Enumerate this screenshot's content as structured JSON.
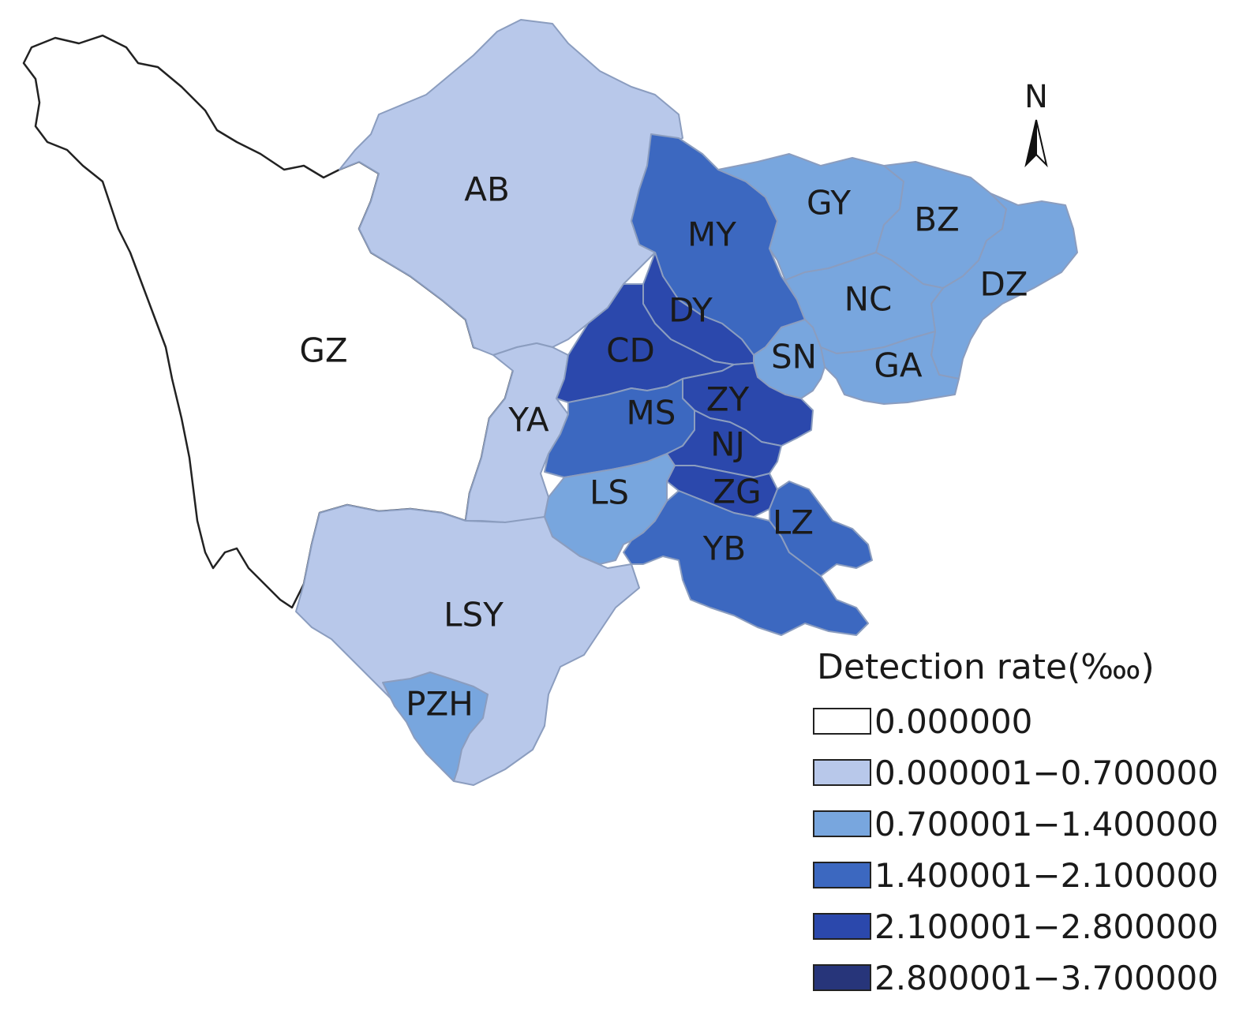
{
  "legend": {
    "title": "Detection rate(‱)",
    "classes": [
      {
        "label": "0.000000",
        "color": "#ffffff"
      },
      {
        "label": "0.000001−0.700000",
        "color": "#b8c8ea"
      },
      {
        "label": "0.700001−1.400000",
        "color": "#78a6de"
      },
      {
        "label": "1.400001−2.100000",
        "color": "#3c68c0"
      },
      {
        "label": "2.100001−2.800000",
        "color": "#2b48ac"
      },
      {
        "label": "2.800001−3.700000",
        "color": "#27357a"
      }
    ]
  },
  "north_arrow": {
    "label": "N"
  },
  "regions": [
    {
      "code": "GZ",
      "class": 0
    },
    {
      "code": "AB",
      "class": 1
    },
    {
      "code": "YA",
      "class": 1
    },
    {
      "code": "LSY",
      "class": 1
    },
    {
      "code": "PZH",
      "class": 2
    },
    {
      "code": "GY",
      "class": 2
    },
    {
      "code": "BZ",
      "class": 2
    },
    {
      "code": "NC",
      "class": 2
    },
    {
      "code": "DZ",
      "class": 2
    },
    {
      "code": "GA",
      "class": 2
    },
    {
      "code": "SN",
      "class": 2
    },
    {
      "code": "LS",
      "class": 2
    },
    {
      "code": "MY",
      "class": 3
    },
    {
      "code": "MS",
      "class": 3
    },
    {
      "code": "YB",
      "class": 3
    },
    {
      "code": "LZ",
      "class": 3
    },
    {
      "code": "DY",
      "class": 4
    },
    {
      "code": "CD",
      "class": 4
    },
    {
      "code": "ZY",
      "class": 4
    },
    {
      "code": "NJ",
      "class": 4
    },
    {
      "code": "ZG",
      "class": 4
    }
  ]
}
